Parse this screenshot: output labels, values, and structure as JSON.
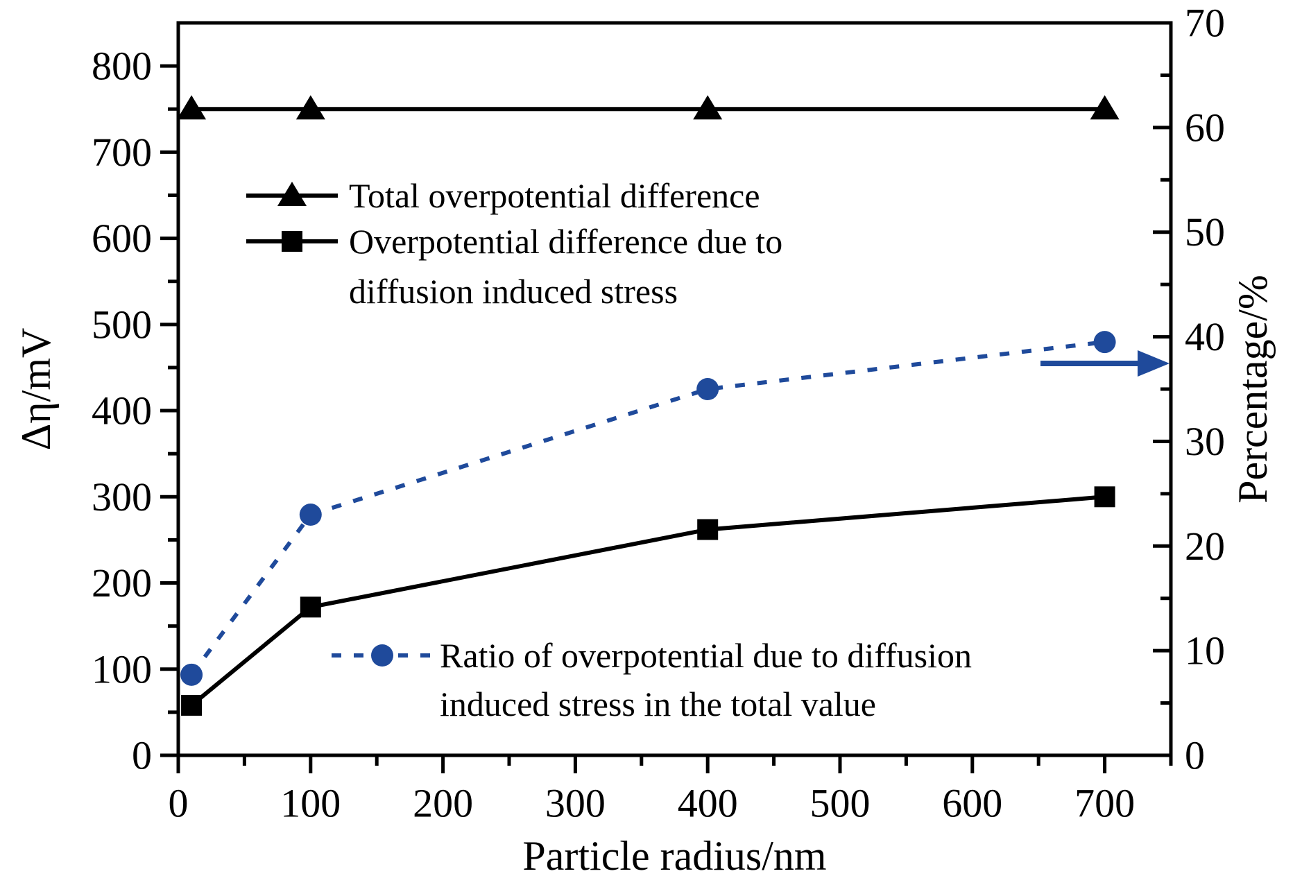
{
  "chart_data": {
    "type": "line",
    "title": "",
    "x": [
      10,
      100,
      400,
      700
    ],
    "series": [
      {
        "id": "total",
        "name": "Total overpotential difference",
        "axis": "left",
        "values": [
          750,
          750,
          750,
          750
        ],
        "color": "#000000",
        "marker": "triangle",
        "line_style": "solid"
      },
      {
        "id": "dis-stress",
        "name": "Overpotential difference due to diffusion induced stress",
        "axis": "left",
        "values": [
          58,
          172,
          262,
          300
        ],
        "color": "#000000",
        "marker": "square",
        "line_style": "solid"
      },
      {
        "id": "ratio",
        "name": "Ratio of overpotential due to diffusion induced stress in the total value",
        "axis": "right",
        "values": [
          7.7,
          23,
          35,
          39.5
        ],
        "color": "#1f4a9b",
        "marker": "circle",
        "line_style": "dashed"
      }
    ],
    "xlabel": "Particle radius/nm",
    "ylabel_left": "Δη/mV",
    "ylabel_right": "Percentage/%",
    "x_range": [
      0,
      750
    ],
    "y_left_range": [
      0,
      850
    ],
    "y_right_range": [
      0,
      70
    ],
    "x_major_ticks": [
      0,
      100,
      200,
      300,
      400,
      500,
      600,
      700
    ],
    "x_minor_step": 50,
    "y_left_major_ticks": [
      0,
      100,
      200,
      300,
      400,
      500,
      600,
      700,
      800
    ],
    "y_left_minor_step": 50,
    "y_right_major_ticks": [
      0,
      10,
      20,
      30,
      40,
      50,
      60,
      70
    ],
    "y_right_minor_step": 5,
    "grid": false,
    "legend_position": "inside-top-left-and-inside-bottom-middle",
    "right_axis_arrow": true
  },
  "legend_black": {
    "entries": [
      {
        "marker": "triangle",
        "label_lines": [
          "Total overpotential difference"
        ]
      },
      {
        "marker": "square",
        "label_lines": [
          "Overpotential difference due to",
          "diffusion induced stress"
        ]
      }
    ]
  },
  "legend_blue": {
    "entries": [
      {
        "marker": "circle",
        "label_lines": [
          "Ratio of overpotential due to diffusion",
          "induced stress in the total value"
        ]
      }
    ]
  },
  "colors": {
    "background": "#ffffff",
    "black": "#000000",
    "accent_blue": "#1f4a9b"
  }
}
